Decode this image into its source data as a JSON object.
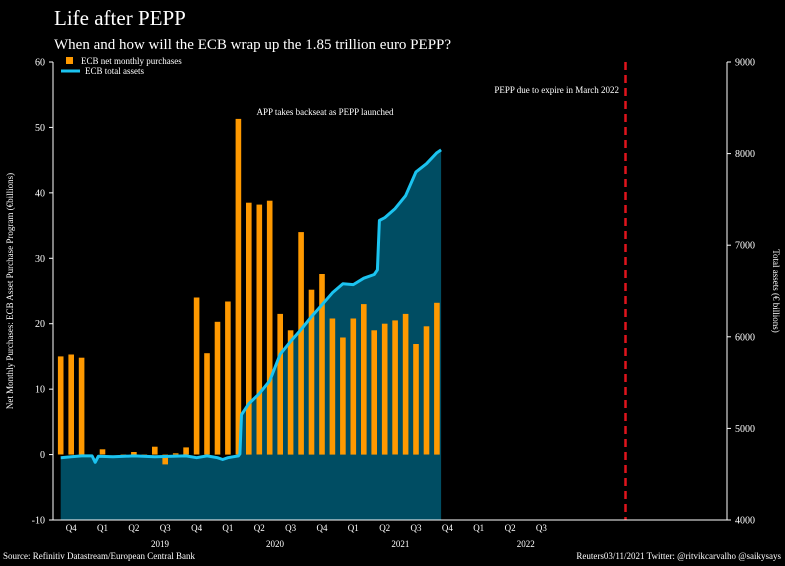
{
  "header": {
    "title": "Life after PEPP",
    "subtitle": "When and how will the ECB wrap up the 1.85 trillion euro PEPP?"
  },
  "footer": {
    "source": "Source: Refinitiv Datastream/European Central Bank",
    "credit": "Reuters03/11/2021 Twitter: @ritvikcarvalho @saikysays"
  },
  "colors": {
    "bar": "#FF9900",
    "line": "#1BC3F0",
    "area": "#004D63",
    "expiry": "#E0141C",
    "background": "#000000"
  },
  "chart_data": {
    "type": "bar+area",
    "title": "Life after PEPP",
    "ylabel": "Net Monthly Purchases: ECB Asset Purchase Program (€billions)",
    "y2label": "Total assets (€ billions)",
    "ylim": [
      -10,
      60
    ],
    "y2lim": [
      4000,
      9000
    ],
    "yticks": [
      -10,
      0,
      10,
      20,
      30,
      40,
      50,
      60
    ],
    "y2ticks": [
      4000,
      5000,
      6000,
      7000,
      8000,
      9000
    ],
    "quarter_labels": [
      "Q4",
      "Q1",
      "Q2",
      "Q3",
      "Q4",
      "Q1",
      "Q2",
      "Q3",
      "Q4",
      "Q1",
      "Q2",
      "Q3",
      "Q4",
      "Q1",
      "Q2",
      "Q3"
    ],
    "year_labels": [
      "2019",
      "2020",
      "2021",
      "2022"
    ],
    "months": [
      "2018-10",
      "2018-11",
      "2018-12",
      "2019-01",
      "2019-02",
      "2019-03",
      "2019-04",
      "2019-05",
      "2019-06",
      "2019-07",
      "2019-08",
      "2019-09",
      "2019-10",
      "2019-11",
      "2019-12",
      "2020-01",
      "2020-02",
      "2020-03",
      "2020-04",
      "2020-05",
      "2020-06",
      "2020-07",
      "2020-08",
      "2020-09",
      "2020-10",
      "2020-11",
      "2020-12",
      "2021-01",
      "2021-02",
      "2021-03",
      "2021-04",
      "2021-05",
      "2021-06",
      "2021-07",
      "2021-08",
      "2021-09",
      "2021-10"
    ],
    "series": [
      {
        "name": "ECB net monthly purchases",
        "type": "bar",
        "values": [
          15,
          15.3,
          14.8,
          0,
          0.8,
          0,
          -0.3,
          0.4,
          -0.3,
          1.2,
          -1.5,
          0.2,
          1.1,
          24,
          15.5,
          20.3,
          23.4,
          51.3,
          38.5,
          38.2,
          38.8,
          21.5,
          19,
          34,
          25.2,
          27.6,
          20.8,
          17.9,
          20.8,
          23,
          19,
          20,
          20.5,
          21.5,
          16.9,
          19.6,
          23.2
        ]
      },
      {
        "name": "ECB total assets",
        "type": "area",
        "points": [
          [
            0,
            4680
          ],
          [
            1,
            4690
          ],
          [
            2,
            4700
          ],
          [
            3,
            4700
          ],
          [
            3.3,
            4630
          ],
          [
            3.6,
            4695
          ],
          [
            5,
            4690
          ],
          [
            7,
            4700
          ],
          [
            9,
            4690
          ],
          [
            12,
            4700
          ],
          [
            13,
            4680
          ],
          [
            14,
            4700
          ],
          [
            15,
            4680
          ],
          [
            15.5,
            4660
          ],
          [
            16,
            4680
          ],
          [
            17,
            4700
          ],
          [
            17.15,
            4720
          ],
          [
            17.3,
            5150
          ],
          [
            18,
            5270
          ],
          [
            19,
            5380
          ],
          [
            20,
            5520
          ],
          [
            21,
            5810
          ],
          [
            22,
            5950
          ],
          [
            23,
            6080
          ],
          [
            24,
            6220
          ],
          [
            25,
            6350
          ],
          [
            26,
            6480
          ],
          [
            27,
            6580
          ],
          [
            28,
            6570
          ],
          [
            29,
            6640
          ],
          [
            30,
            6680
          ],
          [
            30.3,
            6730
          ],
          [
            30.5,
            7270
          ],
          [
            31,
            7300
          ],
          [
            32,
            7400
          ],
          [
            33,
            7540
          ],
          [
            34,
            7800
          ],
          [
            35,
            7890
          ],
          [
            36,
            8010
          ],
          [
            36.4,
            8040
          ]
        ]
      }
    ],
    "annotations": [
      {
        "text": "APP takes backseat as PEPP launched",
        "at_month": "2020-03"
      },
      {
        "text": "PEPP due to expire in March 2022",
        "at_month": "2022-03"
      }
    ],
    "legend": [
      "ECB net monthly purchases",
      "ECB total assets"
    ]
  }
}
